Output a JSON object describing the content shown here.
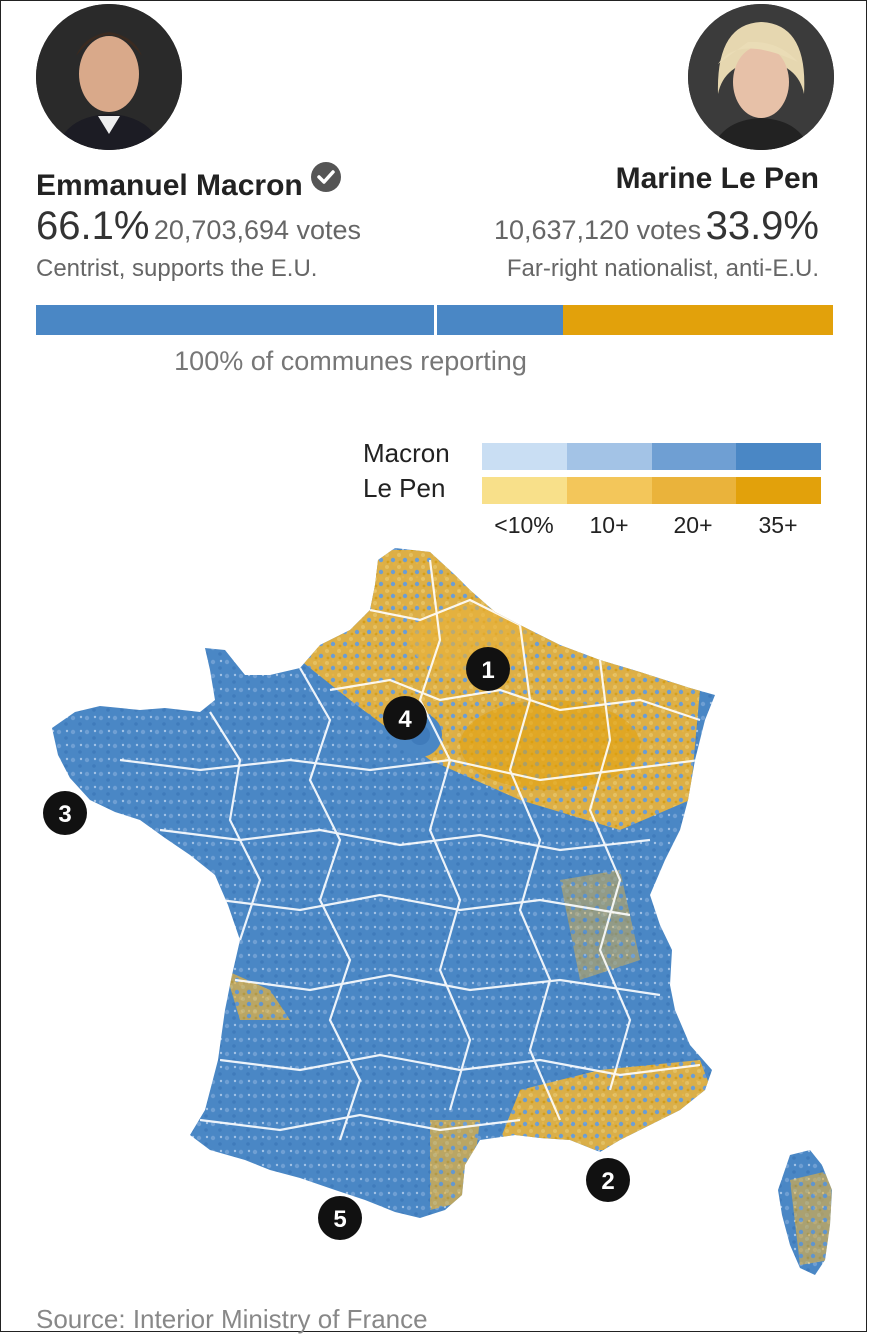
{
  "candidates": {
    "macron": {
      "name": "Emmanuel Macron",
      "percent": "66.1%",
      "votes": "20,703,694 votes",
      "description": "Centrist, supports the E.U.",
      "share": 66.1,
      "color": "#4a87c5",
      "winner_icon": "check-circle-icon"
    },
    "lepen": {
      "name": "Marine Le Pen",
      "percent": "33.9%",
      "votes": "10,637,120 votes",
      "description": "Far-right nationalist, anti-E.U.",
      "share": 33.9,
      "color": "#e2a10b"
    }
  },
  "reporting": "100% of communes reporting",
  "legend": {
    "macron_label": "Macron",
    "lepen_label": "Le Pen",
    "ticks": [
      "<10%",
      "10+",
      "20+",
      "35+"
    ],
    "macron_colors": [
      "#c9def3",
      "#a3c3e6",
      "#6f9fd3",
      "#4a87c5"
    ],
    "lepen_colors": [
      "#f8e08a",
      "#f3c65a",
      "#eab33b",
      "#e2a10b"
    ]
  },
  "map": {
    "title": "France commune results map",
    "annotations": [
      "1",
      "2",
      "3",
      "4",
      "5"
    ]
  },
  "source": "Source: Interior Ministry of France"
}
